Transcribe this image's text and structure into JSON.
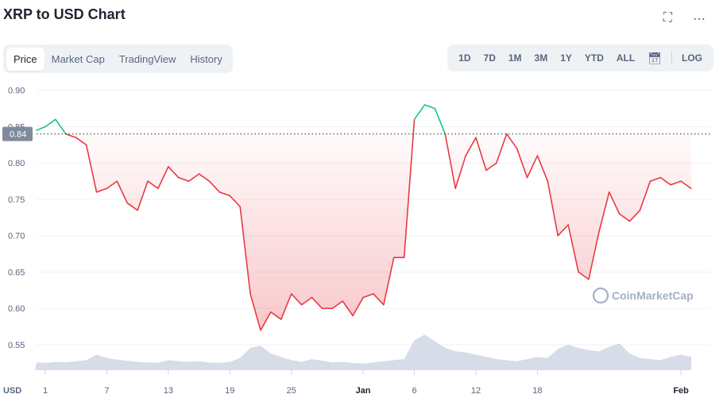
{
  "header": {
    "title": "XRP to USD Chart",
    "fullscreen_icon": "fullscreen-icon",
    "more_icon": "more-icon"
  },
  "tabs": [
    {
      "label": "Price",
      "active": true
    },
    {
      "label": "Market Cap",
      "active": false
    },
    {
      "label": "TradingView",
      "active": false
    },
    {
      "label": "History",
      "active": false
    }
  ],
  "ranges": [
    "1D",
    "7D",
    "1M",
    "3M",
    "1Y",
    "YTD",
    "ALL"
  ],
  "calendar_icon": "calendar-icon",
  "log_label": "LOG",
  "watermark": "CoinMarketCap",
  "colors": {
    "up": "#16c784",
    "down": "#ea3943",
    "volume": "#cfd6e4",
    "grid": "#eff2f5",
    "reference": "#222531",
    "current_badge": "#808a9d"
  },
  "chart_data": {
    "type": "line",
    "currency_label": "USD",
    "current_price_label": "0.84",
    "reference_price": 0.84,
    "ylim": [
      0.515,
      0.915
    ],
    "y_ticks": [
      0.55,
      0.6,
      0.65,
      0.7,
      0.75,
      0.8,
      0.85,
      0.9
    ],
    "y_tick_labels": [
      "0.55",
      "0.60",
      "0.65",
      "0.70",
      "0.75",
      "0.80",
      "0.85",
      "0.90"
    ],
    "x_range": [
      "2021-12-01",
      "2022-02-02"
    ],
    "x_ticks": [
      {
        "date": "2021-12-01",
        "label": "1",
        "bold": false
      },
      {
        "date": "2021-12-07",
        "label": "7",
        "bold": false
      },
      {
        "date": "2021-12-13",
        "label": "13",
        "bold": false
      },
      {
        "date": "2021-12-19",
        "label": "19",
        "bold": false
      },
      {
        "date": "2021-12-25",
        "label": "25",
        "bold": false
      },
      {
        "date": "2022-01-01",
        "label": "Jan",
        "bold": true
      },
      {
        "date": "2022-01-06",
        "label": "6",
        "bold": false
      },
      {
        "date": "2022-01-12",
        "label": "12",
        "bold": false
      },
      {
        "date": "2022-01-18",
        "label": "18",
        "bold": false
      },
      {
        "date": "2022-02-01",
        "label": "Feb",
        "bold": true
      }
    ],
    "price_series": {
      "x": [
        "2021-11-30",
        "2021-12-01",
        "2021-12-02",
        "2021-12-03",
        "2021-12-04",
        "2021-12-05",
        "2021-12-06",
        "2021-12-07",
        "2021-12-08",
        "2021-12-09",
        "2021-12-10",
        "2021-12-11",
        "2021-12-12",
        "2021-12-13",
        "2021-12-14",
        "2021-12-15",
        "2021-12-16",
        "2021-12-17",
        "2021-12-18",
        "2021-12-19",
        "2021-12-20",
        "2021-12-21",
        "2021-12-22",
        "2021-12-23",
        "2021-12-24",
        "2021-12-25",
        "2021-12-26",
        "2021-12-27",
        "2021-12-28",
        "2021-12-29",
        "2021-12-30",
        "2021-12-31",
        "2022-01-01",
        "2022-01-02",
        "2022-01-03",
        "2022-01-04",
        "2022-01-05",
        "2022-01-06",
        "2022-01-07",
        "2022-01-08",
        "2022-01-09",
        "2022-01-10",
        "2022-01-11",
        "2022-01-12",
        "2022-01-13",
        "2022-01-14",
        "2022-01-15",
        "2022-01-16",
        "2022-01-17",
        "2022-01-18",
        "2022-01-19",
        "2022-01-20",
        "2022-01-21",
        "2022-01-22",
        "2022-01-23",
        "2022-01-24",
        "2022-01-25",
        "2022-01-26",
        "2022-01-27",
        "2022-01-28",
        "2022-01-29",
        "2022-01-30",
        "2022-01-31",
        "2022-02-01",
        "2022-02-02"
      ],
      "y": [
        0.845,
        0.85,
        0.86,
        0.84,
        0.835,
        0.825,
        0.76,
        0.765,
        0.775,
        0.745,
        0.735,
        0.775,
        0.765,
        0.795,
        0.78,
        0.775,
        0.785,
        0.775,
        0.76,
        0.755,
        0.74,
        0.62,
        0.57,
        0.595,
        0.585,
        0.62,
        0.605,
        0.615,
        0.6,
        0.6,
        0.61,
        0.59,
        0.615,
        0.62,
        0.605,
        0.67,
        0.67,
        0.86,
        0.88,
        0.875,
        0.84,
        0.765,
        0.81,
        0.835,
        0.79,
        0.8,
        0.84,
        0.82,
        0.78,
        0.81,
        0.775,
        0.7,
        0.715,
        0.65,
        0.64,
        0.705,
        0.76,
        0.73,
        0.72,
        0.735,
        0.775,
        0.78,
        0.77,
        0.775,
        0.765
      ]
    },
    "volume_series": {
      "x": [
        "2021-11-30",
        "2021-12-01",
        "2021-12-02",
        "2021-12-03",
        "2021-12-04",
        "2021-12-05",
        "2021-12-06",
        "2021-12-07",
        "2021-12-08",
        "2021-12-09",
        "2021-12-10",
        "2021-12-11",
        "2021-12-12",
        "2021-12-13",
        "2021-12-14",
        "2021-12-15",
        "2021-12-16",
        "2021-12-17",
        "2021-12-18",
        "2021-12-19",
        "2021-12-20",
        "2021-12-21",
        "2021-12-22",
        "2021-12-23",
        "2021-12-24",
        "2021-12-25",
        "2021-12-26",
        "2021-12-27",
        "2021-12-28",
        "2021-12-29",
        "2021-12-30",
        "2021-12-31",
        "2022-01-01",
        "2022-01-02",
        "2022-01-03",
        "2022-01-04",
        "2022-01-05",
        "2022-01-06",
        "2022-01-07",
        "2022-01-08",
        "2022-01-09",
        "2022-01-10",
        "2022-01-11",
        "2022-01-12",
        "2022-01-13",
        "2022-01-14",
        "2022-01-15",
        "2022-01-16",
        "2022-01-17",
        "2022-01-18",
        "2022-01-19",
        "2022-01-20",
        "2022-01-21",
        "2022-01-22",
        "2022-01-23",
        "2022-01-24",
        "2022-01-25",
        "2022-01-26",
        "2022-01-27",
        "2022-01-28",
        "2022-01-29",
        "2022-01-30",
        "2022-01-31",
        "2022-02-01",
        "2022-02-02"
      ],
      "y": [
        14,
        13,
        15,
        14,
        16,
        18,
        28,
        22,
        19,
        17,
        15,
        14,
        13,
        18,
        16,
        15,
        16,
        14,
        13,
        15,
        22,
        40,
        44,
        30,
        24,
        18,
        15,
        20,
        17,
        14,
        15,
        13,
        12,
        14,
        16,
        18,
        20,
        54,
        64,
        52,
        40,
        34,
        32,
        28,
        24,
        20,
        18,
        16,
        20,
        24,
        22,
        38,
        46,
        40,
        36,
        34,
        42,
        48,
        30,
        22,
        20,
        18,
        24,
        28,
        24
      ]
    },
    "volume_max": 100
  }
}
